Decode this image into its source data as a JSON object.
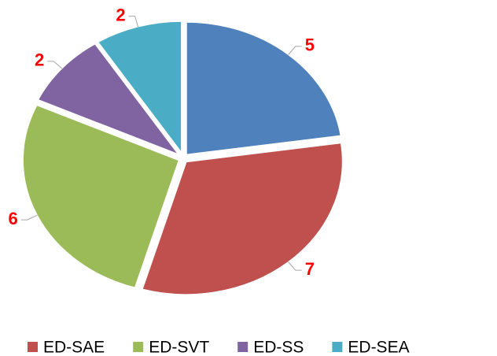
{
  "chart_data": {
    "type": "pie",
    "categories": [
      null,
      "ED-SAE",
      "ED-SVT",
      "ED-SS",
      "ED-SEA"
    ],
    "values": [
      5,
      7,
      6,
      2,
      2
    ],
    "colors": [
      "#4f81bd",
      "#c0504d",
      "#9bbb59",
      "#8064a2",
      "#4bacc6"
    ],
    "legend": "bottom"
  }
}
